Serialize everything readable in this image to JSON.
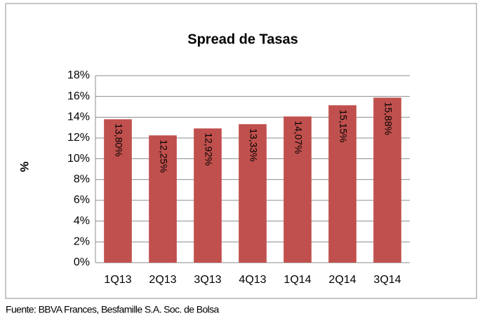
{
  "chart_data": {
    "type": "bar",
    "title": "Spread de Tasas",
    "y_label": "%",
    "categories": [
      "1Q13",
      "2Q13",
      "3Q13",
      "4Q13",
      "1Q14",
      "2Q14",
      "3Q14"
    ],
    "values": [
      13.8,
      12.25,
      12.92,
      13.33,
      14.07,
      15.15,
      15.88
    ],
    "value_labels": [
      "13,80%",
      "12,25%",
      "12,92%",
      "13,33%",
      "14,07%",
      "15,15%",
      "15,88%"
    ],
    "color": "#c0504d",
    "ylim": [
      0,
      18
    ],
    "yticks": [
      {
        "value": 0,
        "label": "0%"
      },
      {
        "value": 2,
        "label": "2%"
      },
      {
        "value": 4,
        "label": "4%"
      },
      {
        "value": 6,
        "label": "6%"
      },
      {
        "value": 8,
        "label": "8%"
      },
      {
        "value": 10,
        "label": "10%"
      },
      {
        "value": 12,
        "label": "12%"
      },
      {
        "value": 14,
        "label": "14%"
      },
      {
        "value": 16,
        "label": "16%"
      },
      {
        "value": 18,
        "label": "18%"
      }
    ],
    "grid": true,
    "source": "Fuente: BBVA Frances, Besfamille S.A. Soc. de Bolsa"
  }
}
